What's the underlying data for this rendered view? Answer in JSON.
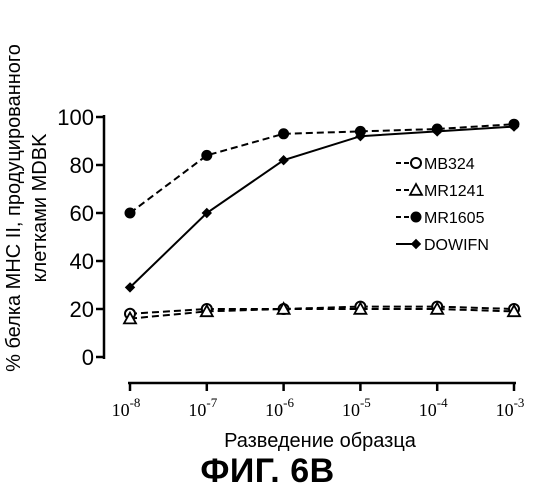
{
  "chart_data": {
    "type": "line",
    "title": "",
    "xlabel": "Разведение образца",
    "ylabel_line1": "% белка MHC II, продуцированного",
    "ylabel_line2": "клетками MDBK",
    "x_scale": "log",
    "x": [
      "1e-8",
      "1e-7",
      "1e-6",
      "1e-5",
      "1e-4",
      "1e-3"
    ],
    "x_tick_labels": [
      {
        "base": "10",
        "exp": "-8"
      },
      {
        "base": "10",
        "exp": "-7"
      },
      {
        "base": "10",
        "exp": "-6"
      },
      {
        "base": "10",
        "exp": "-5"
      },
      {
        "base": "10",
        "exp": "-4"
      },
      {
        "base": "10",
        "exp": "-3"
      }
    ],
    "y_ticks": [
      "0",
      "20",
      "40",
      "60",
      "80",
      "100"
    ],
    "ylim": [
      0,
      100
    ],
    "grid": false,
    "legend_position": "right",
    "series": [
      {
        "name": "MB324",
        "marker": "open-circle",
        "line": "dashed",
        "values": [
          18,
          20,
          20,
          21,
          21,
          20
        ]
      },
      {
        "name": "MR1241",
        "marker": "open-triangle",
        "line": "dashed",
        "values": [
          16,
          19,
          20,
          20,
          20,
          19
        ]
      },
      {
        "name": "MR1605",
        "marker": "filled-circle",
        "line": "dashed",
        "values": [
          60,
          84,
          93,
          94,
          95,
          97
        ]
      },
      {
        "name": "DOWIFN",
        "marker": "filled-diamond",
        "line": "solid",
        "values": [
          29,
          60,
          82,
          92,
          94,
          96
        ]
      }
    ],
    "colors": {
      "ink": "#000000",
      "background": "#ffffff"
    }
  },
  "caption": "ФИГ. 6B"
}
